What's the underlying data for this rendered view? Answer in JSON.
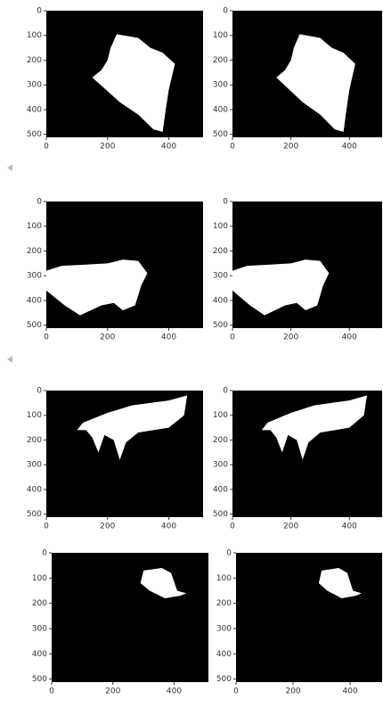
{
  "chart_data": [
    {
      "type": "image",
      "xlim": [
        0,
        512
      ],
      "ylim": [
        512,
        0
      ],
      "xticks": [
        0,
        200,
        400
      ],
      "yticks": [
        0,
        100,
        200,
        300,
        400,
        500
      ]
    },
    {
      "type": "image",
      "xlim": [
        0,
        512
      ],
      "ylim": [
        512,
        0
      ],
      "xticks": [
        0,
        200,
        400
      ],
      "yticks": [
        0,
        100,
        200,
        300,
        400,
        500
      ]
    },
    {
      "type": "image",
      "xlim": [
        0,
        512
      ],
      "ylim": [
        512,
        0
      ],
      "xticks": [
        0,
        200,
        400
      ],
      "yticks": [
        0,
        100,
        200,
        300,
        400,
        500
      ]
    },
    {
      "type": "image",
      "xlim": [
        0,
        512
      ],
      "ylim": [
        512,
        0
      ],
      "xticks": [
        0,
        200,
        400
      ],
      "yticks": [
        0,
        100,
        200,
        300,
        400,
        500
      ]
    },
    {
      "type": "image",
      "xlim": [
        0,
        512
      ],
      "ylim": [
        512,
        0
      ],
      "xticks": [
        0,
        200,
        400
      ],
      "yticks": [
        0,
        100,
        200,
        300,
        400,
        500
      ]
    },
    {
      "type": "image",
      "xlim": [
        0,
        512
      ],
      "ylim": [
        512,
        0
      ],
      "xticks": [
        0,
        200,
        400
      ],
      "yticks": [
        0,
        100,
        200,
        300,
        400,
        500
      ]
    },
    {
      "type": "image",
      "xlim": [
        0,
        512
      ],
      "ylim": [
        512,
        0
      ],
      "xticks": [
        0,
        200,
        400
      ],
      "yticks": [
        0,
        100,
        200,
        300,
        400,
        500
      ]
    },
    {
      "type": "image",
      "xlim": [
        0,
        512
      ],
      "ylim": [
        512,
        0
      ],
      "xticks": [
        0,
        200,
        400
      ],
      "yticks": [
        0,
        100,
        200,
        300,
        400,
        500
      ]
    }
  ]
}
